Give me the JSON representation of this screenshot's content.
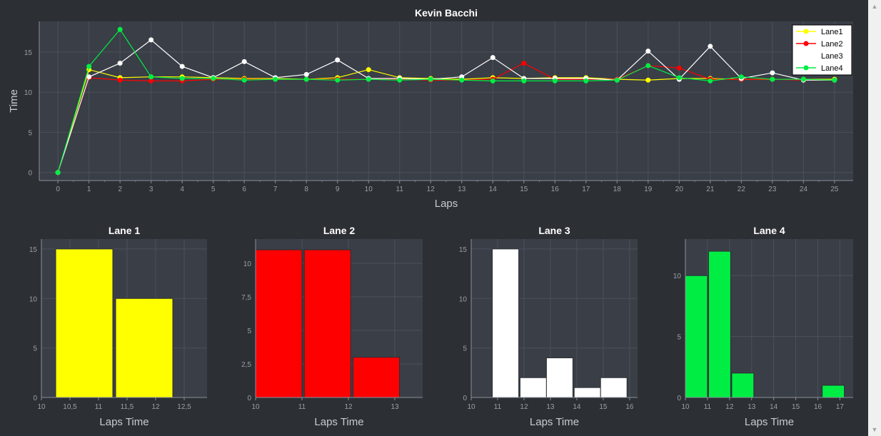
{
  "colors": {
    "background": "#2c2f34",
    "plot_bg": "#393e47",
    "grid": "#4b515b",
    "lane1": "#ffff00",
    "lane2": "#ff0000",
    "lane3": "#ffffff",
    "lane4": "#00ee44"
  },
  "chart_data": [
    {
      "type": "line",
      "title": "Kevin Bacchi",
      "xlabel": "Laps",
      "ylabel": "Time",
      "x": [
        0,
        1,
        2,
        3,
        4,
        5,
        6,
        7,
        8,
        9,
        10,
        11,
        12,
        13,
        14,
        15,
        16,
        17,
        18,
        19,
        20,
        21,
        22,
        23,
        24,
        25
      ],
      "xlim": [
        -0.6,
        25.6
      ],
      "ylim": [
        -1,
        18.8
      ],
      "yticks": [
        0,
        5,
        10,
        15
      ],
      "grid": true,
      "legend_position": "top-right",
      "series": [
        {
          "name": "Lane1",
          "color": "#ffff00",
          "values": [
            0,
            12.8,
            11.8,
            11.9,
            11.9,
            11.8,
            11.7,
            11.7,
            11.6,
            11.8,
            12.8,
            11.8,
            11.7,
            11.6,
            11.8,
            11.7,
            11.8,
            11.8,
            11.6,
            11.5,
            11.7,
            11.7,
            11.6,
            11.6,
            11.6,
            11.6
          ]
        },
        {
          "name": "Lane2",
          "color": "#ff0000",
          "values": [
            0,
            11.8,
            11.5,
            11.4,
            11.4,
            11.6,
            11.6,
            11.6,
            11.6,
            11.6,
            11.6,
            11.6,
            11.5,
            11.5,
            11.6,
            13.6,
            11.6,
            11.6,
            11.6,
            13.3,
            13.0,
            11.6,
            11.6,
            11.6,
            11.5,
            11.5
          ]
        },
        {
          "name": "Lane3",
          "color": "#ffffff",
          "values": [
            0,
            11.9,
            13.6,
            16.5,
            13.2,
            11.8,
            13.8,
            11.8,
            12.2,
            14.0,
            11.7,
            11.7,
            11.6,
            11.9,
            14.3,
            11.7,
            11.7,
            11.7,
            11.5,
            15.1,
            11.6,
            15.7,
            11.7,
            12.4,
            11.5,
            11.5
          ]
        },
        {
          "name": "Lane4",
          "color": "#00ee44",
          "values": [
            0,
            13.2,
            17.8,
            11.9,
            11.7,
            11.7,
            11.5,
            11.6,
            11.6,
            11.5,
            11.6,
            11.5,
            11.6,
            11.5,
            11.4,
            11.4,
            11.4,
            11.4,
            11.5,
            13.3,
            11.8,
            11.4,
            11.9,
            11.6,
            11.6,
            11.5
          ]
        }
      ]
    },
    {
      "type": "bar",
      "title": "Lane 1",
      "xlabel": "Laps Time",
      "color": "#ffff00",
      "xlim": [
        10,
        12.9
      ],
      "ylim": [
        0,
        16
      ],
      "xticks": [
        10,
        10.5,
        11,
        11.5,
        12,
        12.5
      ],
      "xtick_labels": [
        "10",
        "10,5",
        "11",
        "11,5",
        "12",
        "12,5"
      ],
      "yticks": [
        0,
        5,
        10,
        15
      ],
      "ytick_labels": [
        "0",
        "5",
        "10",
        "15"
      ],
      "bins": [
        {
          "x0": 10.25,
          "x1": 11.25,
          "value": 15
        },
        {
          "x0": 11.3,
          "x1": 12.3,
          "value": 10
        }
      ]
    },
    {
      "type": "bar",
      "title": "Lane 2",
      "xlabel": "Laps Time",
      "color": "#ff0000",
      "xlim": [
        10,
        13.6
      ],
      "ylim": [
        0,
        11.8
      ],
      "xticks": [
        10,
        11,
        12,
        13
      ],
      "xtick_labels": [
        "10",
        "11",
        "12",
        "13"
      ],
      "yticks": [
        0,
        2.5,
        5,
        7.5,
        10
      ],
      "ytick_labels": [
        "0",
        "2,5",
        "5",
        "7,5",
        "10"
      ],
      "bins": [
        {
          "x0": 10.0,
          "x1": 11.0,
          "value": 11
        },
        {
          "x0": 11.05,
          "x1": 12.05,
          "value": 11
        },
        {
          "x0": 12.1,
          "x1": 13.1,
          "value": 3
        }
      ]
    },
    {
      "type": "bar",
      "title": "Lane 3",
      "xlabel": "Laps Time",
      "color": "#ffffff",
      "xlim": [
        10,
        16.3
      ],
      "ylim": [
        0,
        16
      ],
      "xticks": [
        10,
        11,
        12,
        13,
        14,
        15,
        16
      ],
      "xtick_labels": [
        "10",
        "11",
        "12",
        "13",
        "14",
        "15",
        "16"
      ],
      "yticks": [
        0,
        5,
        10,
        15
      ],
      "ytick_labels": [
        "0",
        "5",
        "10",
        "15"
      ],
      "bins": [
        {
          "x0": 10.8,
          "x1": 11.8,
          "value": 15
        },
        {
          "x0": 11.85,
          "x1": 12.85,
          "value": 2
        },
        {
          "x0": 12.85,
          "x1": 13.85,
          "value": 4
        },
        {
          "x0": 13.9,
          "x1": 14.9,
          "value": 1
        },
        {
          "x0": 14.9,
          "x1": 15.9,
          "value": 2
        }
      ]
    },
    {
      "type": "bar",
      "title": "Lane 4",
      "xlabel": "Laps Time",
      "color": "#00ee44",
      "xlim": [
        10,
        17.6
      ],
      "ylim": [
        0,
        13
      ],
      "xticks": [
        10,
        11,
        12,
        13,
        14,
        15,
        16,
        17
      ],
      "xtick_labels": [
        "10",
        "11",
        "12",
        "13",
        "14",
        "15",
        "16",
        "17"
      ],
      "yticks": [
        0,
        5,
        10
      ],
      "ytick_labels": [
        "0",
        "5",
        "10"
      ],
      "bins": [
        {
          "x0": 10.0,
          "x1": 11.0,
          "value": 10
        },
        {
          "x0": 11.05,
          "x1": 12.05,
          "value": 12
        },
        {
          "x0": 12.1,
          "x1": 13.1,
          "value": 2
        },
        {
          "x0": 16.2,
          "x1": 17.2,
          "value": 1
        }
      ]
    }
  ]
}
